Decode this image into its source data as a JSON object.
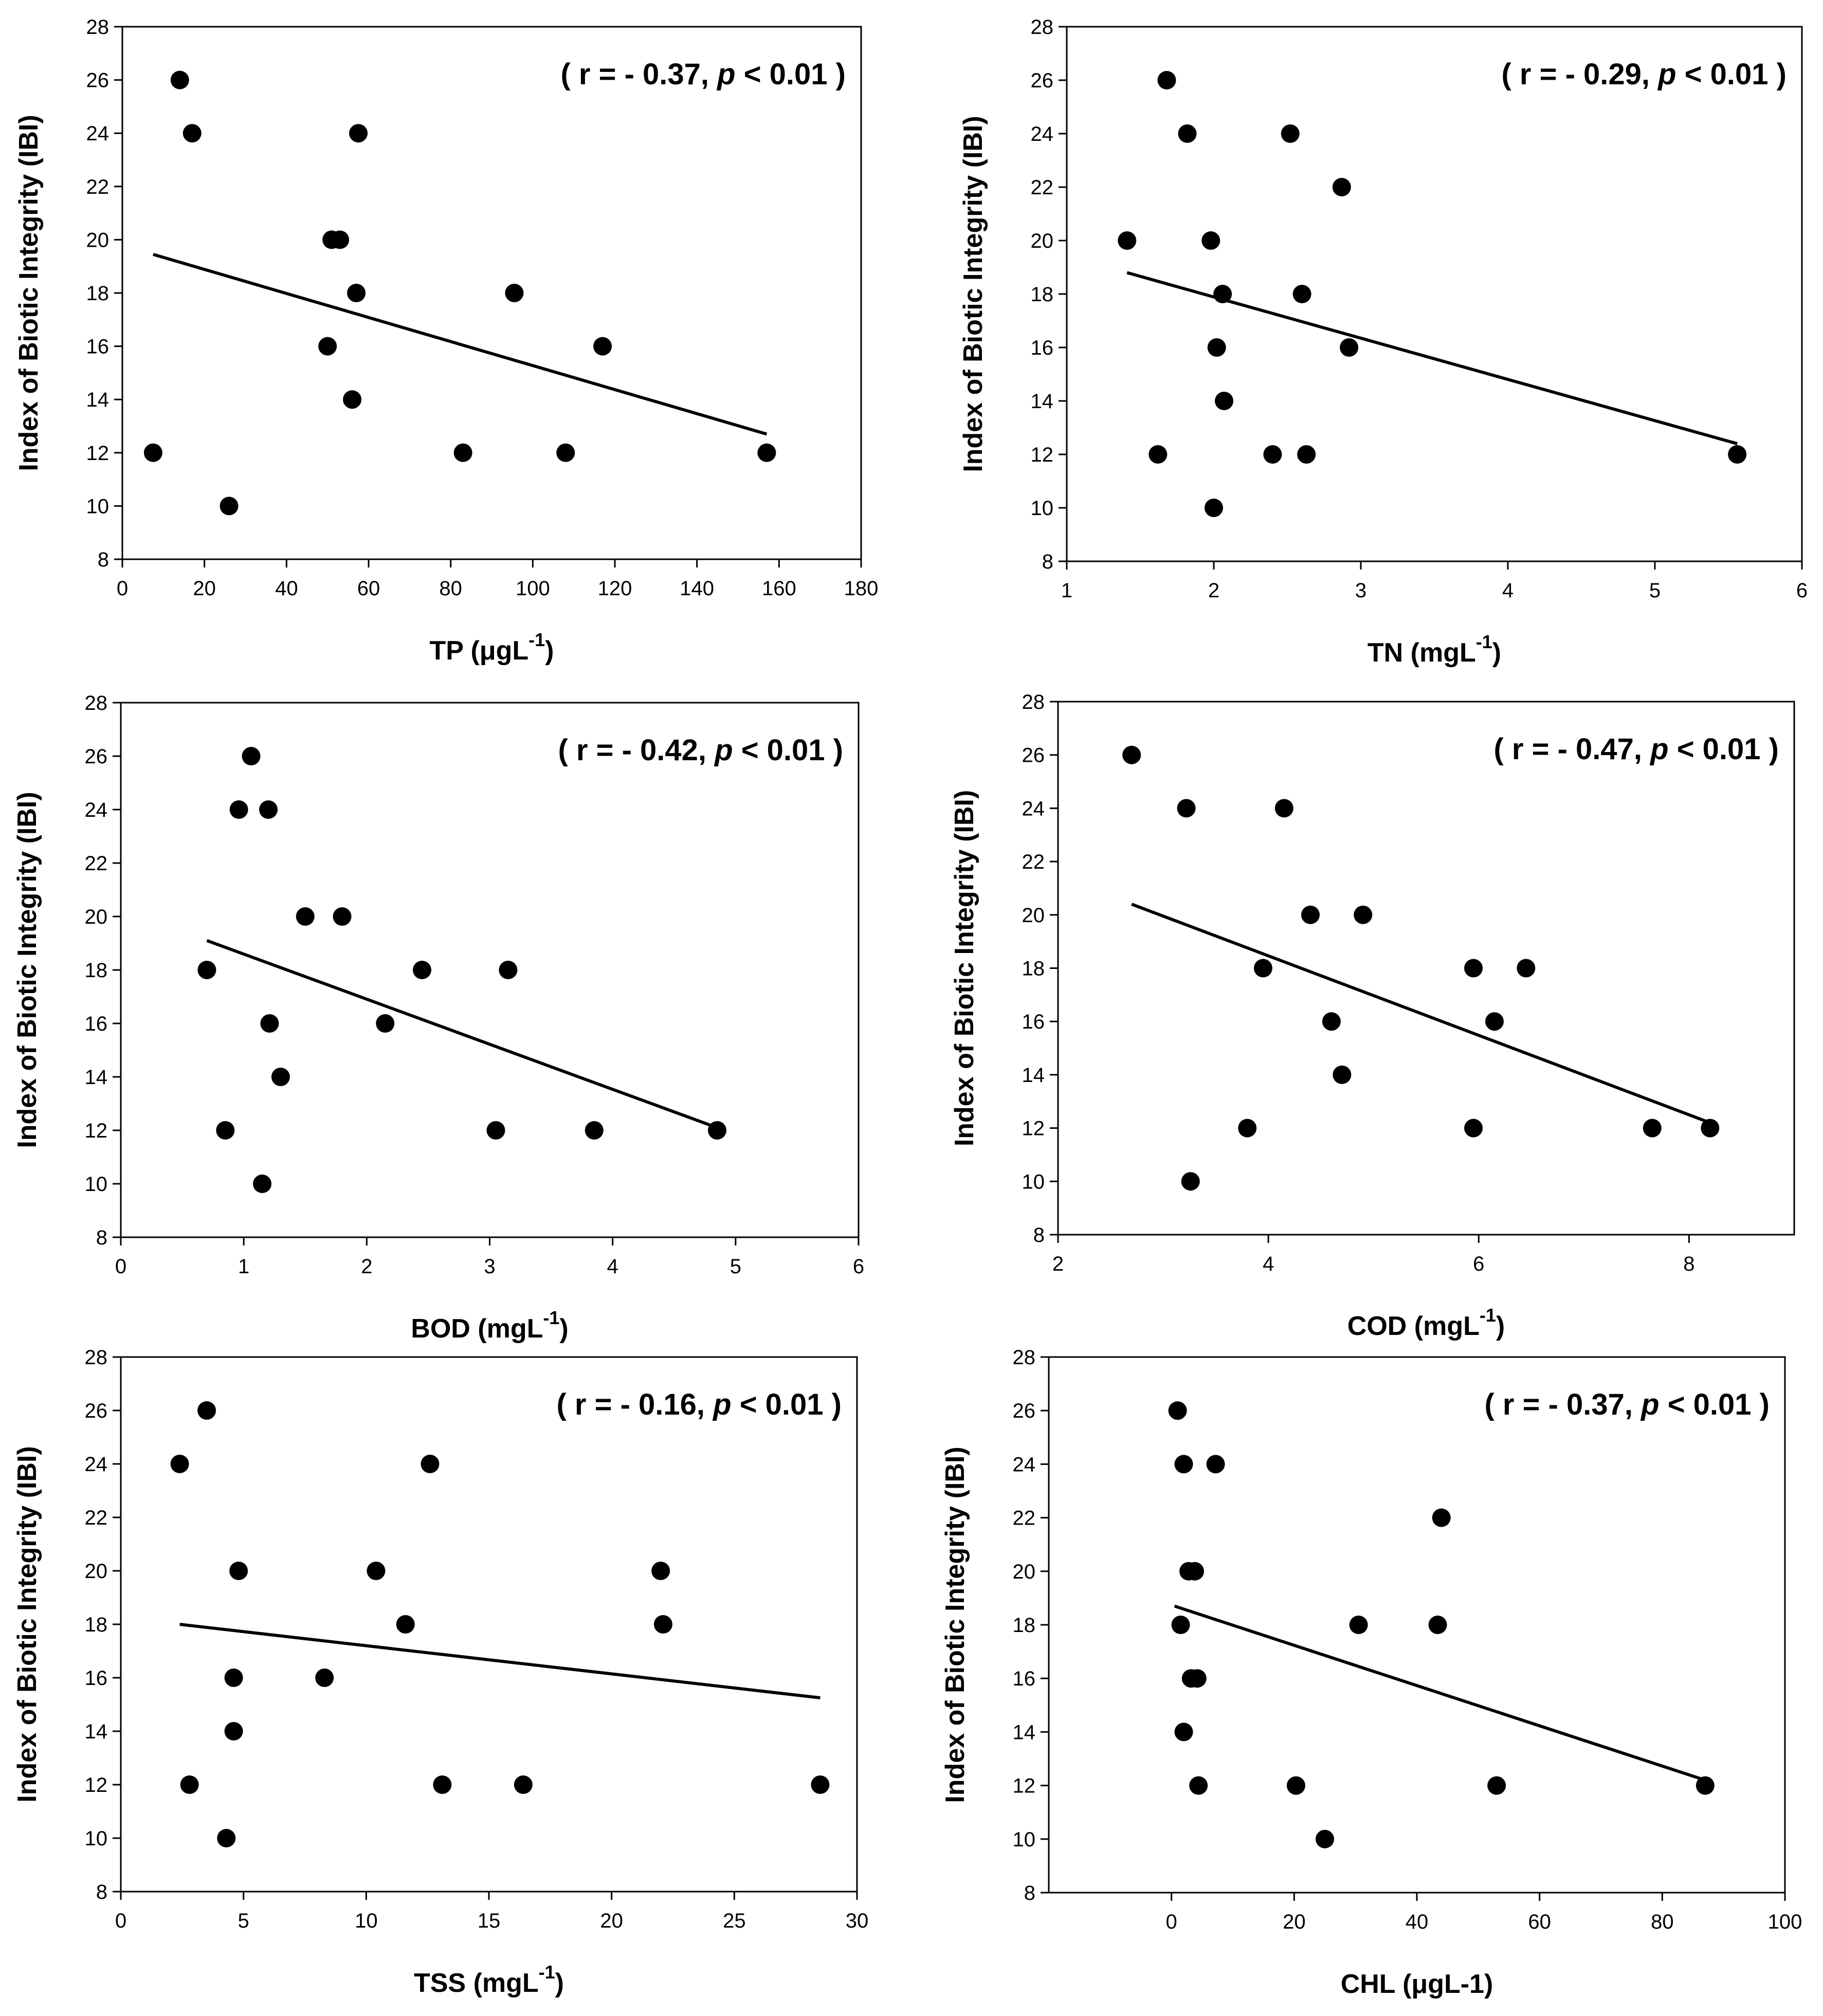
{
  "chart_data": [
    {
      "type": "scatter",
      "ylabel": "Index of Biotic Integrity (IBI)",
      "xlabel": "TP (μgL",
      "xlabel_sup": "-1",
      "xlabel_suffix": ")",
      "annotation": {
        "open": "( r = - 0.37, ",
        "p": "p",
        "close": " < 0.01 )"
      },
      "xlim": [
        0,
        180
      ],
      "ylim": [
        8,
        28
      ],
      "xticks": [
        0,
        20,
        40,
        60,
        80,
        100,
        120,
        140,
        160,
        180
      ],
      "yticks": [
        8,
        10,
        12,
        14,
        16,
        18,
        20,
        22,
        24,
        26,
        28
      ],
      "points": [
        [
          7.5,
          12
        ],
        [
          14,
          26
        ],
        [
          17,
          24
        ],
        [
          26,
          10
        ],
        [
          50,
          16
        ],
        [
          51,
          20
        ],
        [
          53,
          20
        ],
        [
          56,
          14
        ],
        [
          57,
          18
        ],
        [
          57.5,
          24
        ],
        [
          83,
          12
        ],
        [
          95.5,
          18
        ],
        [
          108,
          12
        ],
        [
          117,
          16
        ],
        [
          157,
          12
        ]
      ],
      "fit": [
        [
          7.5,
          19.45
        ],
        [
          157,
          12.7
        ]
      ]
    },
    {
      "type": "scatter",
      "ylabel": "Index of Biotic Integrity (IBI)",
      "xlabel": "TN (mgL",
      "xlabel_sup": "-1",
      "xlabel_suffix": ")",
      "annotation": {
        "open": "( r = - 0.29, ",
        "p": "p",
        "close": " < 0.01 )"
      },
      "xlim": [
        1,
        6
      ],
      "ylim": [
        8,
        28
      ],
      "xticks": [
        1,
        2,
        3,
        4,
        5,
        6
      ],
      "yticks": [
        8,
        10,
        12,
        14,
        16,
        18,
        20,
        22,
        24,
        26,
        28
      ],
      "points": [
        [
          1.41,
          20
        ],
        [
          1.62,
          12
        ],
        [
          1.68,
          26
        ],
        [
          1.82,
          24
        ],
        [
          1.98,
          20
        ],
        [
          2.0,
          10
        ],
        [
          2.02,
          16
        ],
        [
          2.06,
          18
        ],
        [
          2.07,
          14
        ],
        [
          2.4,
          12
        ],
        [
          2.52,
          24
        ],
        [
          2.6,
          18
        ],
        [
          2.63,
          12
        ],
        [
          2.87,
          22
        ],
        [
          2.92,
          16
        ],
        [
          5.56,
          12
        ]
      ],
      "fit": [
        [
          1.41,
          18.8
        ],
        [
          5.56,
          12.4
        ]
      ]
    },
    {
      "type": "scatter",
      "ylabel": "Index of Biotic Integrity (IBI)",
      "xlabel": "BOD (mgL",
      "xlabel_sup": "-1",
      "xlabel_suffix": ")",
      "annotation": {
        "open": "( r = - 0.42, ",
        "p": "p",
        "close": " < 0.01 )"
      },
      "xlim": [
        0,
        6
      ],
      "ylim": [
        8,
        28
      ],
      "xticks": [
        0,
        1,
        2,
        3,
        4,
        5,
        6
      ],
      "yticks": [
        8,
        10,
        12,
        14,
        16,
        18,
        20,
        22,
        24,
        26,
        28
      ],
      "points": [
        [
          0.7,
          18
        ],
        [
          0.85,
          12
        ],
        [
          0.96,
          24
        ],
        [
          1.06,
          26
        ],
        [
          1.15,
          10
        ],
        [
          1.2,
          24
        ],
        [
          1.21,
          16
        ],
        [
          1.3,
          14
        ],
        [
          1.5,
          20
        ],
        [
          1.8,
          20
        ],
        [
          2.15,
          16
        ],
        [
          2.45,
          18
        ],
        [
          3.05,
          12
        ],
        [
          3.15,
          18
        ],
        [
          3.85,
          12
        ],
        [
          4.85,
          12
        ]
      ],
      "fit": [
        [
          0.7,
          19.1
        ],
        [
          4.85,
          12.1
        ]
      ]
    },
    {
      "type": "scatter",
      "ylabel": "Index of Biotic Integrity (IBI)",
      "xlabel": "COD (mgL",
      "xlabel_sup": "-1",
      "xlabel_suffix": ")",
      "annotation": {
        "open": "( r = - 0.47, ",
        "p": "p",
        "close": " < 0.01 )"
      },
      "xlim": [
        2,
        9
      ],
      "ylim": [
        8,
        28
      ],
      "xticks": [
        2,
        4,
        6,
        8
      ],
      "yticks": [
        8,
        10,
        12,
        14,
        16,
        18,
        20,
        22,
        24,
        26,
        28
      ],
      "points": [
        [
          2.7,
          26
        ],
        [
          3.22,
          24
        ],
        [
          3.26,
          10
        ],
        [
          3.8,
          12
        ],
        [
          3.95,
          18
        ],
        [
          4.15,
          24
        ],
        [
          4.4,
          20
        ],
        [
          4.6,
          16
        ],
        [
          4.7,
          14
        ],
        [
          4.9,
          20
        ],
        [
          5.95,
          18
        ],
        [
          5.95,
          12
        ],
        [
          6.15,
          16
        ],
        [
          6.45,
          18
        ],
        [
          7.65,
          12
        ],
        [
          8.2,
          12
        ]
      ],
      "fit": [
        [
          2.7,
          20.4
        ],
        [
          8.2,
          12.2
        ]
      ]
    },
    {
      "type": "scatter",
      "ylabel": "Index of Biotic Integrity (IBI)",
      "xlabel": "TSS (mgL",
      "xlabel_sup": "-1",
      "xlabel_suffix": ")",
      "annotation": {
        "open": "( r = - 0.16, ",
        "p": "p",
        "close": " < 0.01 )"
      },
      "xlim": [
        0,
        30
      ],
      "ylim": [
        8,
        28
      ],
      "xticks": [
        0,
        5,
        10,
        15,
        20,
        25,
        30
      ],
      "yticks": [
        8,
        10,
        12,
        14,
        16,
        18,
        20,
        22,
        24,
        26,
        28
      ],
      "points": [
        [
          2.4,
          24
        ],
        [
          2.8,
          12
        ],
        [
          3.5,
          26
        ],
        [
          4.3,
          10
        ],
        [
          4.6,
          16
        ],
        [
          4.6,
          14
        ],
        [
          4.8,
          20
        ],
        [
          8.3,
          16
        ],
        [
          10.4,
          20
        ],
        [
          11.6,
          18
        ],
        [
          12.6,
          24
        ],
        [
          13.1,
          12
        ],
        [
          16.4,
          12
        ],
        [
          22.0,
          20
        ],
        [
          22.1,
          18
        ],
        [
          28.5,
          12
        ]
      ],
      "fit": [
        [
          2.4,
          18.0
        ],
        [
          28.5,
          15.25
        ]
      ]
    },
    {
      "type": "scatter",
      "ylabel": "Index of Biotic Integrity (IBI)",
      "xlabel": "CHL (μgL-1)",
      "xlabel_sup": "",
      "xlabel_suffix": "",
      "annotation": {
        "open": "( r = - 0.37, ",
        "p": "p",
        "close": " < 0.01 )"
      },
      "xlim": [
        -20,
        100
      ],
      "ylim": [
        8,
        28
      ],
      "xticks": [
        0,
        20,
        40,
        60,
        80,
        100
      ],
      "yticks": [
        8,
        10,
        12,
        14,
        16,
        18,
        20,
        22,
        24,
        26,
        28
      ],
      "points": [
        [
          1,
          26
        ],
        [
          1.5,
          18
        ],
        [
          2,
          24
        ],
        [
          2,
          14
        ],
        [
          2.8,
          20
        ],
        [
          3.2,
          16
        ],
        [
          3.8,
          20
        ],
        [
          4.2,
          16
        ],
        [
          4.4,
          12
        ],
        [
          7.2,
          24
        ],
        [
          20.3,
          12
        ],
        [
          25,
          10
        ],
        [
          30.5,
          18
        ],
        [
          43.4,
          18
        ],
        [
          44,
          22
        ],
        [
          53,
          12
        ],
        [
          87,
          12
        ]
      ],
      "fit": [
        [
          0.5,
          18.7
        ],
        [
          87,
          12.2
        ]
      ]
    }
  ]
}
